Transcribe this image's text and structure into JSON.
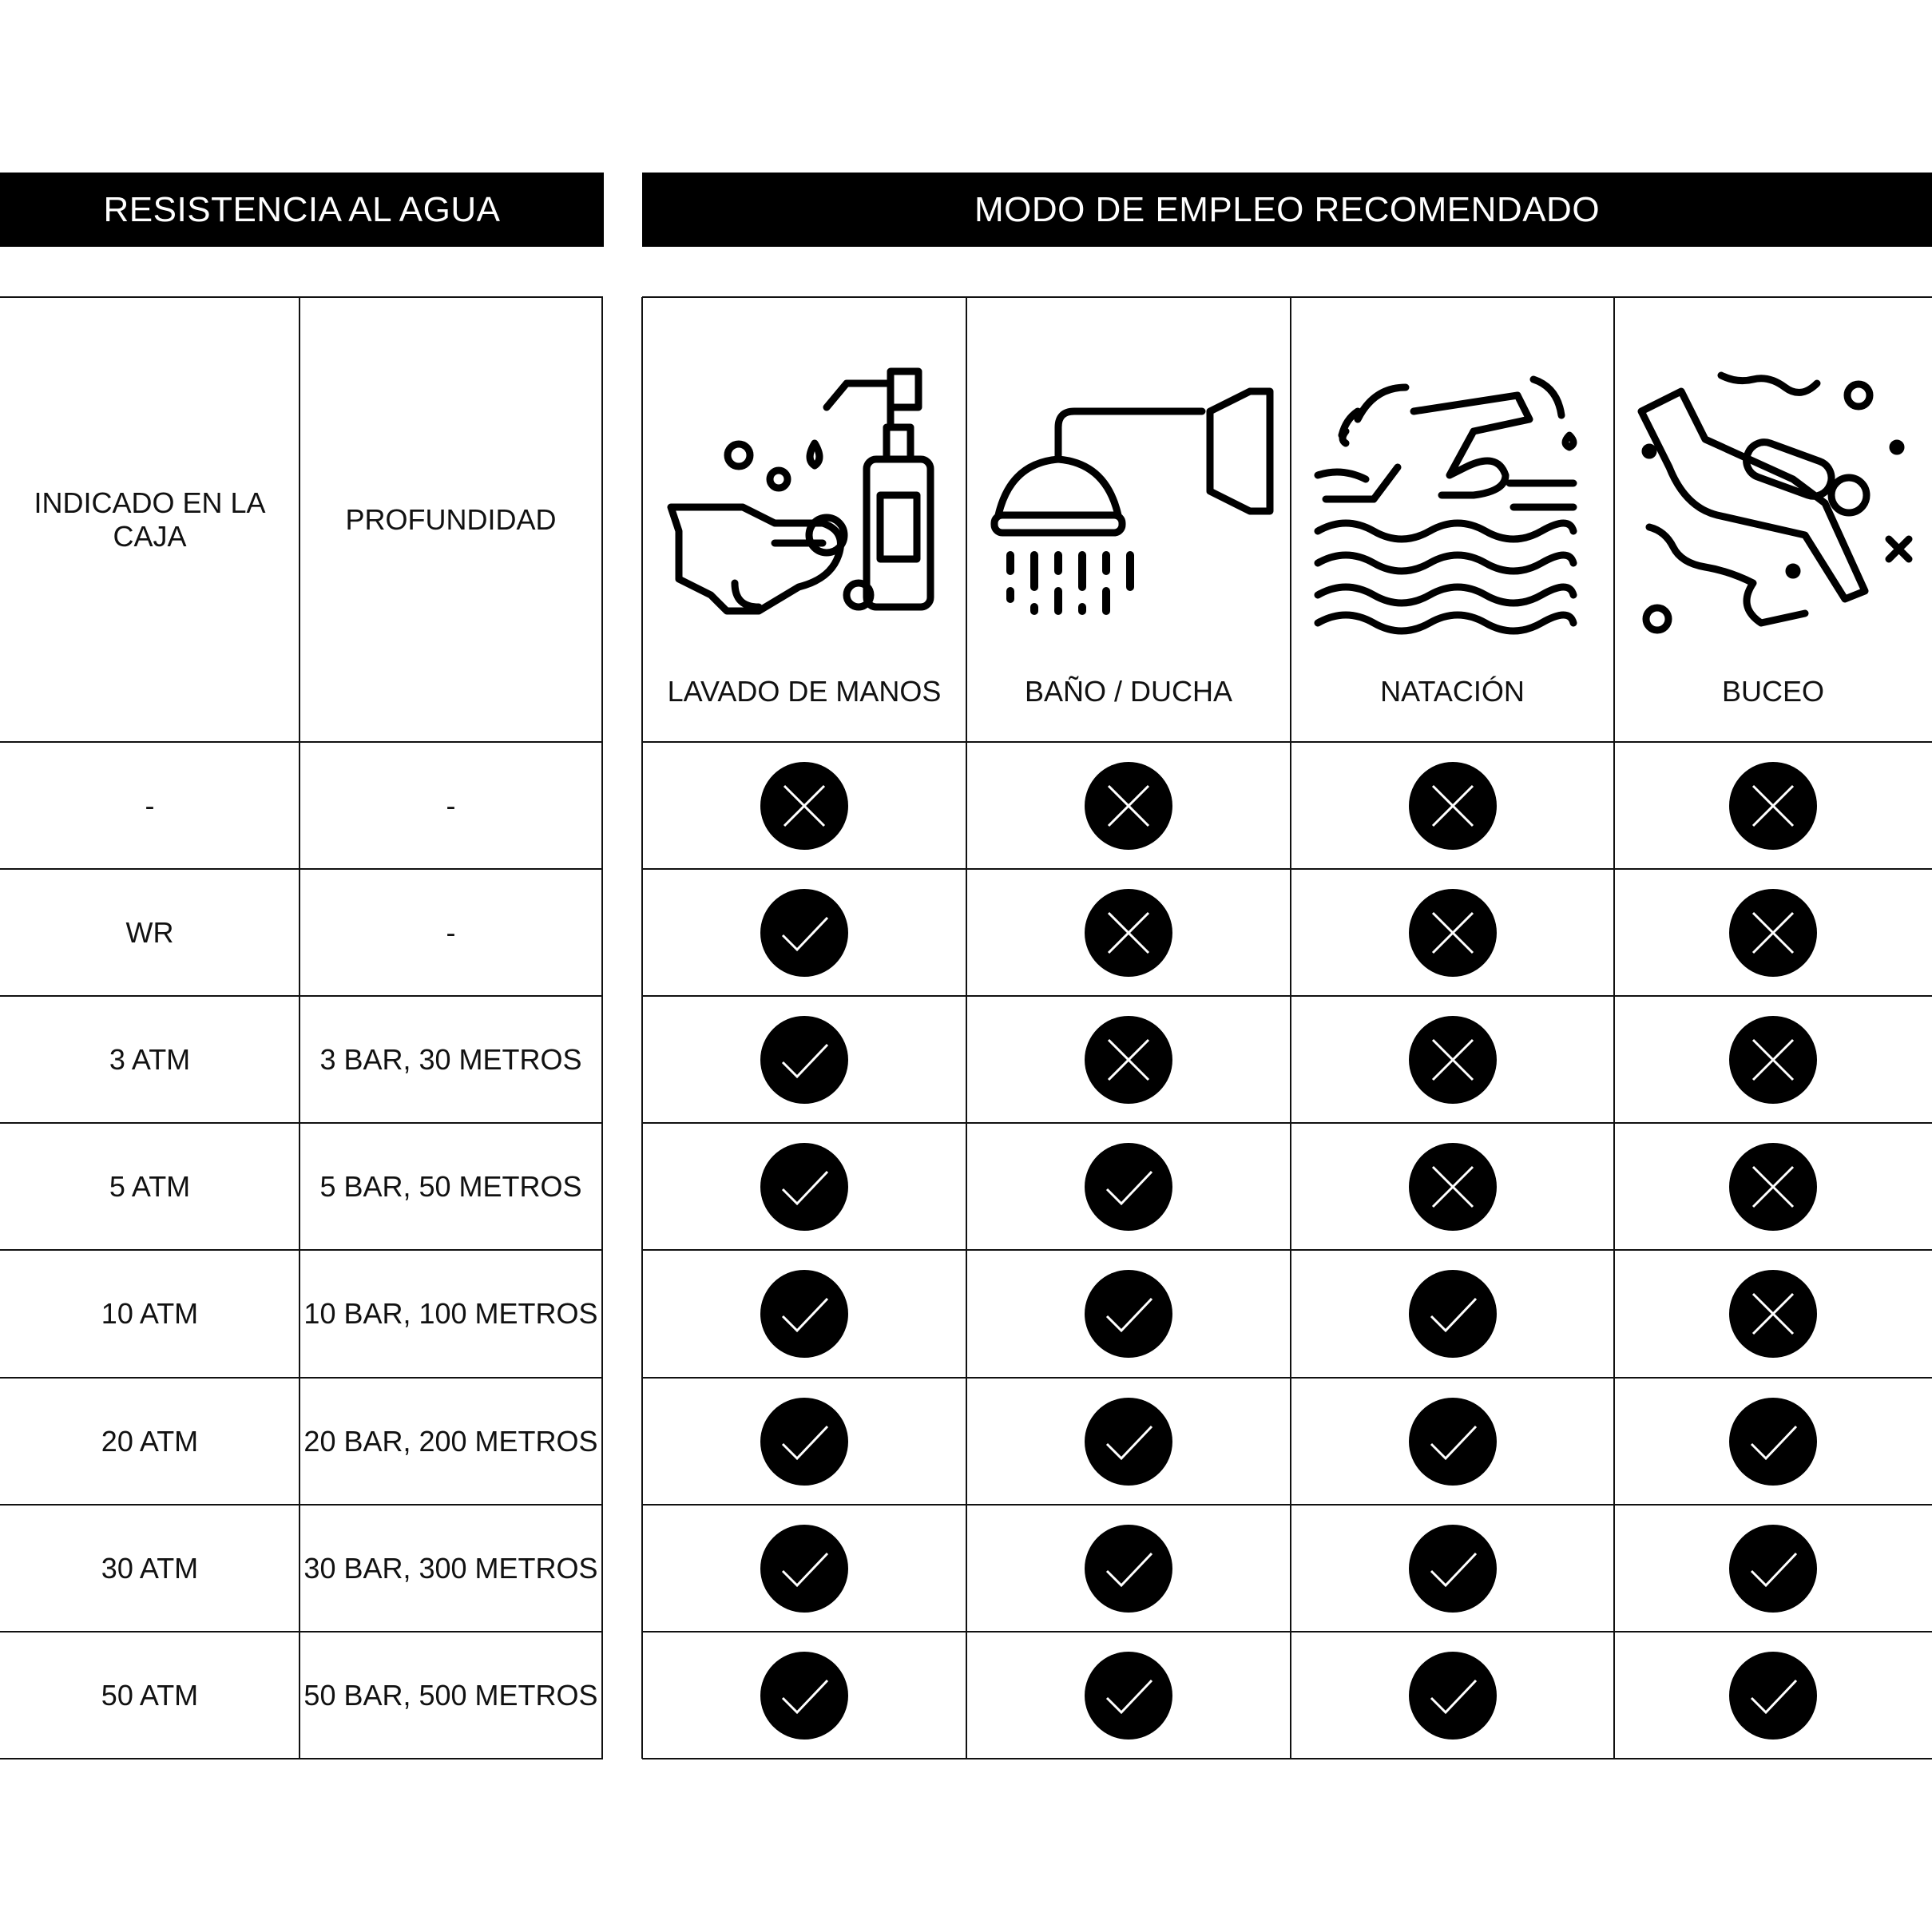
{
  "headers": {
    "left": "RESISTENCIA AL AGUA",
    "right": "MODO DE EMPLEO RECOMENDADO"
  },
  "columns": {
    "indicated": "INDICADO EN LA CAJA",
    "depth": "PROFUNDIDAD",
    "uses": [
      {
        "label": "LAVADO DE MANOS",
        "icon": "hand-washing-icon"
      },
      {
        "label": "BAÑO / DUCHA",
        "icon": "shower-icon"
      },
      {
        "label": "NATACIÓN",
        "icon": "swimming-icon"
      },
      {
        "label": "BUCEO",
        "icon": "diving-icon"
      }
    ]
  },
  "rows": [
    {
      "indicated": "-",
      "depth": "-",
      "ok": [
        false,
        false,
        false,
        false
      ]
    },
    {
      "indicated": "WR",
      "depth": "-",
      "ok": [
        true,
        false,
        false,
        false
      ]
    },
    {
      "indicated": "3 ATM",
      "depth": "3 BAR, 30 METROS",
      "ok": [
        true,
        false,
        false,
        false
      ]
    },
    {
      "indicated": "5 ATM",
      "depth": "5 BAR, 50 METROS",
      "ok": [
        true,
        true,
        false,
        false
      ]
    },
    {
      "indicated": "10 ATM",
      "depth": "10 BAR, 100 METROS",
      "ok": [
        true,
        true,
        true,
        false
      ]
    },
    {
      "indicated": "20 ATM",
      "depth": "20 BAR, 200 METROS",
      "ok": [
        true,
        true,
        true,
        true
      ]
    },
    {
      "indicated": "30 ATM",
      "depth": "30 BAR, 300 METROS",
      "ok": [
        true,
        true,
        true,
        true
      ]
    },
    {
      "indicated": "50 ATM",
      "depth": "50 BAR, 500 METROS",
      "ok": [
        true,
        true,
        true,
        true
      ]
    }
  ],
  "colors": {
    "mark_bg": "#000000",
    "mark_stroke": "#ffffff",
    "bar_bg": "#000000"
  }
}
